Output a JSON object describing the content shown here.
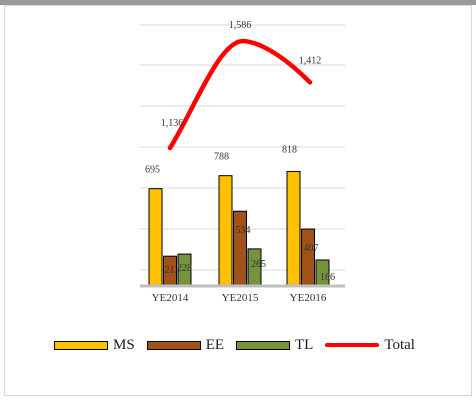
{
  "chart_data": {
    "type": "bar",
    "categories": [
      "YE2014",
      "YE2015",
      "YE2016"
    ],
    "series": [
      {
        "name": "MS",
        "values": [
          695,
          788,
          818
        ],
        "color": "#FFC000"
      },
      {
        "name": "EE",
        "values": [
          213,
          534,
          407
        ],
        "color": "#A0521A"
      },
      {
        "name": "TL",
        "values": [
          228,
          265,
          186
        ],
        "color": "#76933C"
      }
    ],
    "line_series": {
      "name": "Total",
      "values": [
        1136,
        1586,
        1412
      ],
      "color": "#FF0000"
    },
    "grid": true,
    "legend_position": "bottom"
  }
}
